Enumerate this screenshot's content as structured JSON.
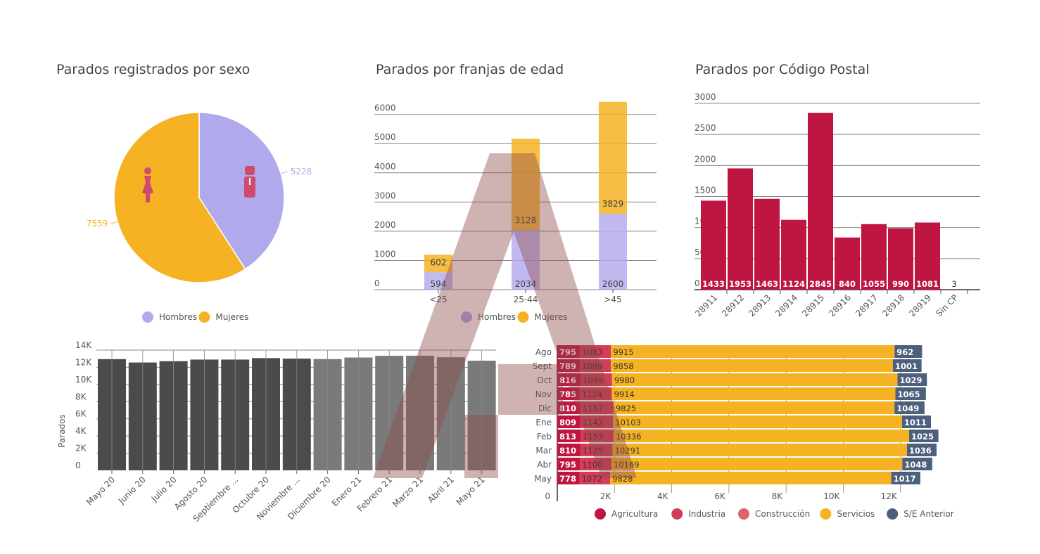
{
  "colors": {
    "hombres": "#b0a9ec",
    "mujeres": "#f5b324",
    "agricultura": "#be1541",
    "industria": "#d33d57",
    "construccion": "#db6370",
    "servicios": "#f5b324",
    "se_anterior": "#4c5f7d",
    "postal": "#be1541",
    "bar_dark": "#4b4b4b",
    "bar_light": "#7a7a7a",
    "icon": "#d04a6e",
    "watermark": "#8c4a4a"
  },
  "chart_data": [
    {
      "id": "sexo",
      "type": "pie",
      "title": "Parados registrados por sexo",
      "labels": [
        "Hombres",
        "Mujeres"
      ],
      "values": [
        5228,
        7559
      ],
      "legend": [
        "Hombres",
        "Mujeres"
      ],
      "legend_position": "bottom",
      "icons": [
        "female-icon",
        "male-icon"
      ]
    },
    {
      "id": "edad",
      "type": "bar",
      "stacked": true,
      "title": "Parados por franjas de edad",
      "categories": [
        "<25",
        "25-44",
        ">45"
      ],
      "series": [
        {
          "name": "Hombres",
          "values": [
            594,
            2034,
            2600
          ]
        },
        {
          "name": "Mujeres",
          "values": [
            602,
            3128,
            3829
          ]
        }
      ],
      "yticks": [
        "0",
        "1000",
        "2000",
        "3000",
        "4000",
        "5000",
        "6000"
      ],
      "ylim": [
        0,
        6400
      ],
      "legend": [
        "Hombres",
        "Mujeres"
      ],
      "legend_position": "bottom",
      "grid": true
    },
    {
      "id": "cp",
      "type": "bar",
      "title": "Parados por Código Postal",
      "categories": [
        "28911",
        "28912",
        "28913",
        "28914",
        "28915",
        "28916",
        "28917",
        "28918",
        "28919",
        "Sin CP"
      ],
      "values": [
        1433,
        1953,
        1463,
        1124,
        2845,
        840,
        1055,
        990,
        1081,
        3
      ],
      "yticks": [
        "0",
        "500",
        "1000",
        "1500",
        "2000",
        "2500",
        "3000"
      ],
      "ylim": [
        0,
        3000
      ],
      "grid": true
    },
    {
      "id": "mensual",
      "type": "bar",
      "title": "",
      "ylabel": "Parados",
      "categories": [
        "Mayo 20",
        "Junio 20",
        "Julio 20",
        "Agosto 20",
        "Septiembre ...",
        "Octubre 20",
        "Noviembre ...",
        "Diciembre 20",
        "Enero 21",
        "Febrero 21",
        "Marzo 21",
        "Abril 21",
        "Mayo 21"
      ],
      "values": [
        12950,
        12560,
        12710,
        12900,
        12900,
        13070,
        13010,
        12960,
        13140,
        13340,
        13350,
        13170,
        12770
      ],
      "yticks": [
        "0",
        "2K",
        "4K",
        "6K",
        "8K",
        "10K",
        "12K",
        "14K"
      ],
      "ylim": [
        0,
        14000
      ],
      "grid": true
    },
    {
      "id": "sectores",
      "type": "bar",
      "orientation": "horizontal",
      "stacked": true,
      "title": "",
      "categories": [
        "Ago",
        "Sept",
        "Oct",
        "Nov",
        "Dic",
        "Ene",
        "Feb",
        "Mar",
        "Abr",
        "May"
      ],
      "series": [
        {
          "name": "Agricultura",
          "values": [
            795,
            789,
            816,
            785,
            810,
            809,
            813,
            810,
            795,
            778
          ]
        },
        {
          "name": "Industria",
          "values": [
            1083,
            1089,
            1099,
            1124,
            1157,
            1142,
            1153,
            1125,
            1100,
            1072
          ]
        },
        {
          "name": "Construcción",
          "values": [
            0,
            0,
            0,
            0,
            0,
            0,
            0,
            0,
            0,
            0
          ]
        },
        {
          "name": "Servicios",
          "values": [
            9915,
            9858,
            9980,
            9914,
            9825,
            10103,
            10336,
            10291,
            10169,
            9828
          ]
        },
        {
          "name": "S/E Anterior",
          "values": [
            962,
            1001,
            1029,
            1065,
            1049,
            1011,
            1025,
            1036,
            1048,
            1017
          ]
        }
      ],
      "xticks": [
        "0",
        "2K",
        "4K",
        "6K",
        "8K",
        "10K",
        "12K"
      ],
      "xlim": [
        0,
        14000
      ],
      "legend": [
        "Agricultura",
        "Industria",
        "Construcción",
        "Servicios",
        "S/E Anterior"
      ],
      "legend_position": "bottom",
      "grid": true
    }
  ]
}
